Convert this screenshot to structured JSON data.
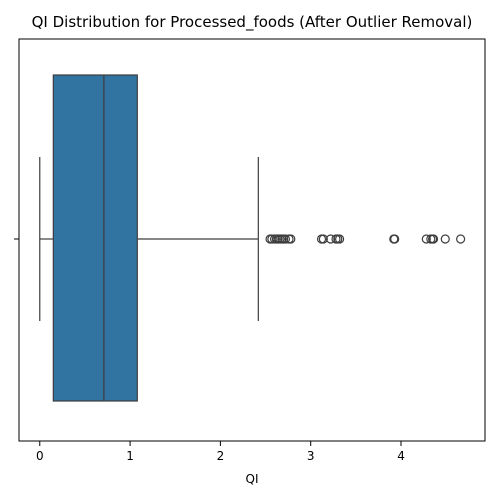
{
  "chart_data": {
    "type": "box",
    "title": "QI Distribution for Processed_foods (After Outlier Removal)",
    "xlabel": "QI",
    "ylabel": "",
    "orientation": "horizontal",
    "xlim": [
      -0.23,
      4.93
    ],
    "xticks": [
      0,
      1,
      2,
      3,
      4
    ],
    "grid": false,
    "box": {
      "whisker_low": 0.0,
      "q1": 0.15,
      "median": 0.71,
      "q3": 1.08,
      "whisker_high": 2.42
    },
    "outliers": [
      2.55,
      2.57,
      2.6,
      2.62,
      2.64,
      2.66,
      2.68,
      2.7,
      2.72,
      2.76,
      2.78,
      3.12,
      3.14,
      3.22,
      3.28,
      3.3,
      3.32,
      3.92,
      3.93,
      4.28,
      4.33,
      4.35,
      4.36,
      4.49,
      4.66
    ],
    "colors": {
      "box_fill": "#3274a1",
      "line": "#3d3d3d",
      "axis": "#000000"
    }
  }
}
